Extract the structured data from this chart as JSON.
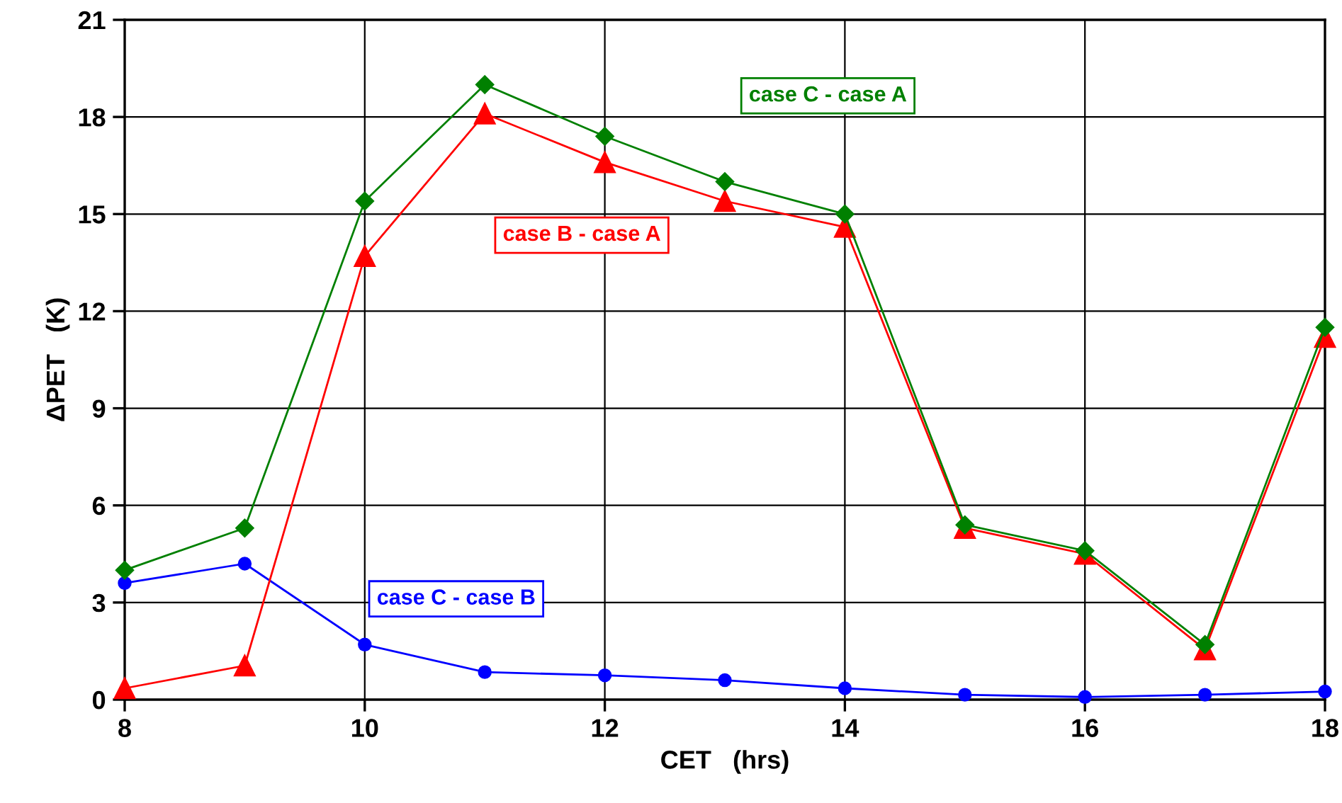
{
  "chart_data": {
    "type": "line",
    "xlabel": "CET   (hrs)",
    "ylabel": "ΔPET   (K)",
    "x": [
      8,
      9,
      10,
      11,
      12,
      13,
      14,
      15,
      16,
      17,
      18
    ],
    "series": [
      {
        "name": "case C - case A",
        "color": "#008000",
        "marker": "diamond",
        "values": [
          4.0,
          5.3,
          15.4,
          19.0,
          17.4,
          16.0,
          15.0,
          5.4,
          4.6,
          1.7,
          11.5
        ]
      },
      {
        "name": "case B - case A",
        "color": "#ff0000",
        "marker": "triangle",
        "values": [
          0.35,
          1.05,
          13.7,
          18.1,
          16.6,
          15.4,
          14.6,
          5.3,
          4.5,
          1.55,
          11.2
        ]
      },
      {
        "name": "case C - case B",
        "color": "#0000ff",
        "marker": "circle",
        "values": [
          3.6,
          4.2,
          1.7,
          0.85,
          0.75,
          0.6,
          0.35,
          0.15,
          0.08,
          0.15,
          0.25
        ]
      }
    ],
    "xlim": [
      8,
      18
    ],
    "ylim": [
      0,
      21
    ],
    "xticks": [
      8,
      10,
      12,
      14,
      16,
      18
    ],
    "yticks": [
      0,
      3,
      6,
      9,
      12,
      15,
      18,
      21
    ],
    "grid": true,
    "legend": false,
    "line_style": "solid"
  }
}
